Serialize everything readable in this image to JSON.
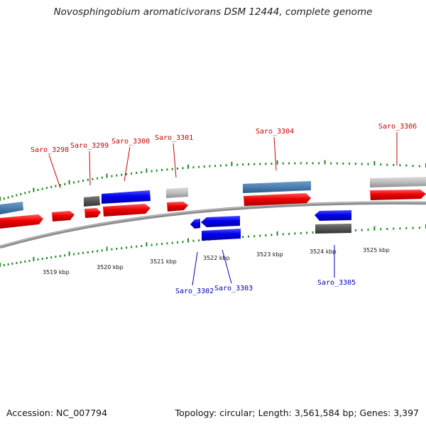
{
  "title": "Novosphingobium aromaticivorans DSM 12444, complete genome",
  "accession": "Accession: NC_007794",
  "stats": "Topology: circular; Length: 3,561,584 bp; Genes: 3,397",
  "colors": {
    "forward_label": "#cc0000",
    "reverse_label": "#0000b3",
    "tick": "#1a8a1a",
    "backbone": "#888888"
  },
  "scale_labels": [
    "3519 kbp",
    "3520 kbp",
    "3521 kbp",
    "3522 kbp",
    "3523 kbp",
    "3524 kbp",
    "3525 kbp"
  ],
  "gene_labels": [
    {
      "id": "Saro_3298",
      "strand": "forward"
    },
    {
      "id": "Saro_3299",
      "strand": "forward"
    },
    {
      "id": "Saro_3300",
      "strand": "forward"
    },
    {
      "id": "Saro_3301",
      "strand": "forward"
    },
    {
      "id": "Saro_3304",
      "strand": "forward"
    },
    {
      "id": "Saro_3306",
      "strand": "forward"
    },
    {
      "id": "Saro_3302",
      "strand": "reverse"
    },
    {
      "id": "Saro_3303",
      "strand": "reverse"
    },
    {
      "id": "Saro_3305",
      "strand": "reverse"
    }
  ]
}
